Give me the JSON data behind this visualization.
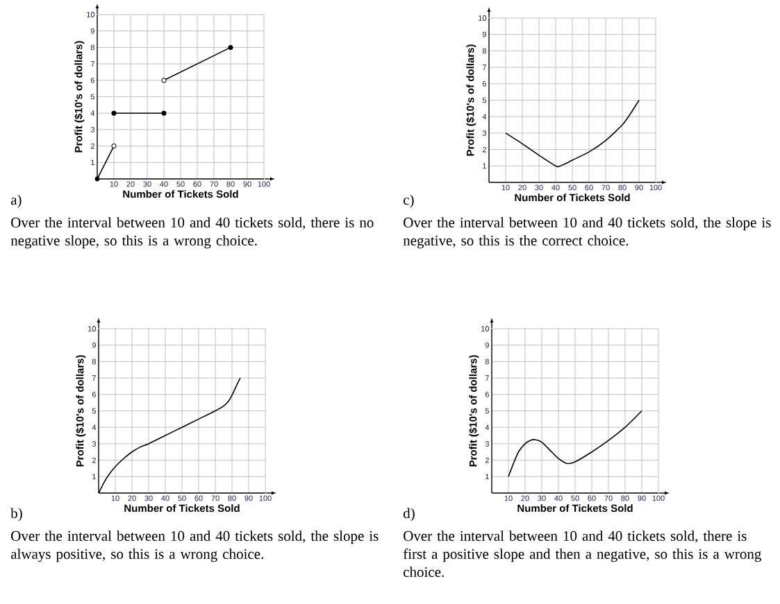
{
  "chart_data": [
    {
      "type": "line",
      "xlabel": "Number of Tickets Sold",
      "ylabel": "Profit ($10's of dollars)",
      "xlim": [
        0,
        100
      ],
      "ylim": [
        0,
        10
      ],
      "xticks": [
        10,
        20,
        30,
        40,
        50,
        60,
        70,
        80,
        90,
        100
      ],
      "yticks": [
        1,
        2,
        3,
        4,
        5,
        6,
        7,
        8,
        9,
        10
      ],
      "grid": true,
      "annotations": [
        "a)",
        "Over the interval between 10 and 40 tickets sold, there is no negative slope, so this is a wrong choice."
      ],
      "series": [
        {
          "color": "#000000",
          "x": [
            0,
            10
          ],
          "values": [
            0,
            2
          ]
        },
        {
          "color": "#000000",
          "x": [
            10,
            40
          ],
          "values": [
            4,
            4
          ]
        },
        {
          "color": "#000000",
          "x": [
            40,
            80
          ],
          "values": [
            6,
            8
          ]
        },
        {
          "type": "scatter",
          "marker": "circle",
          "color": "#000000",
          "x": [
            0,
            10,
            40,
            80
          ],
          "values": [
            0,
            4,
            4,
            8
          ]
        },
        {
          "type": "scatter",
          "marker": "circle",
          "color": "#ffffff",
          "x": [
            10,
            40
          ],
          "values": [
            2,
            6
          ]
        }
      ]
    },
    {
      "type": "line",
      "xlabel": "Number of Tickets Sold",
      "ylabel": "Profit ($10's of dollars)",
      "xlim": [
        0,
        100
      ],
      "ylim": [
        0,
        10
      ],
      "xticks": [
        10,
        20,
        30,
        40,
        50,
        60,
        70,
        80,
        90,
        100
      ],
      "yticks": [
        1,
        2,
        3,
        4,
        5,
        6,
        7,
        8,
        9,
        10
      ],
      "grid": true,
      "annotations": [
        "c)",
        "Over the interval between 10 and 40 tickets sold, the slope is negative, so this is the correct choice."
      ],
      "series": [
        {
          "color": "#000000",
          "x": [
            10,
            20,
            30,
            40,
            42,
            45,
            50,
            60,
            70,
            80,
            85,
            90
          ],
          "values": [
            3,
            2.35,
            1.65,
            1.0,
            0.97,
            1.1,
            1.35,
            1.85,
            2.55,
            3.5,
            4.2,
            5
          ]
        }
      ]
    },
    {
      "type": "line",
      "xlabel": "Number of Tickets Sold",
      "ylabel": "Profit ($10's of dollars)",
      "xlim": [
        0,
        100
      ],
      "ylim": [
        0,
        10
      ],
      "xticks": [
        10,
        20,
        30,
        40,
        50,
        60,
        70,
        80,
        90,
        100
      ],
      "yticks": [
        1,
        2,
        3,
        4,
        5,
        6,
        7,
        8,
        9,
        10
      ],
      "grid": true,
      "annotations": [
        "b)",
        "Over the interval between 10 and 40 tickets sold, the slope is always positive, so this is a wrong choice."
      ],
      "series": [
        {
          "color": "#000000",
          "x": [
            0,
            3,
            6,
            10,
            15,
            20,
            25,
            30,
            40,
            50,
            60,
            70,
            75,
            78,
            80,
            83,
            85
          ],
          "values": [
            0,
            0.6,
            1.1,
            1.6,
            2.1,
            2.5,
            2.8,
            3,
            3.5,
            4,
            4.5,
            5,
            5.3,
            5.6,
            5.95,
            6.6,
            7
          ]
        }
      ]
    },
    {
      "type": "line",
      "xlabel": "Number of Tickets Sold",
      "ylabel": "Profit ($10's of dollars)",
      "xlim": [
        0,
        100
      ],
      "ylim": [
        0,
        10
      ],
      "xticks": [
        10,
        20,
        30,
        40,
        50,
        60,
        70,
        80,
        90,
        100
      ],
      "yticks": [
        1,
        2,
        3,
        4,
        5,
        6,
        7,
        8,
        9,
        10
      ],
      "grid": true,
      "annotations": [
        "d)",
        "Over the interval between 10 and 40 tickets sold, there is first a positive slope and then a negative, so this is a wrong choice."
      ],
      "series": [
        {
          "color": "#000000",
          "x": [
            10,
            13,
            16,
            20,
            23,
            26,
            30,
            35,
            40,
            45,
            50,
            60,
            70,
            80,
            90
          ],
          "values": [
            1,
            1.8,
            2.5,
            3.0,
            3.2,
            3.25,
            3.1,
            2.6,
            2.1,
            1.8,
            1.9,
            2.5,
            3.2,
            4,
            5
          ]
        }
      ]
    }
  ]
}
